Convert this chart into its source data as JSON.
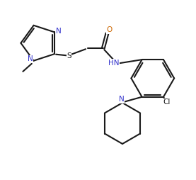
{
  "bg_color": "#ffffff",
  "line_color": "#1a1a1a",
  "n_color": "#3333cc",
  "o_color": "#cc6600",
  "s_color": "#1a1a1a",
  "cl_color": "#1a1a1a",
  "line_width": 1.5,
  "figsize": [
    2.77,
    2.54
  ],
  "dpi": 100,
  "xlim": [
    0,
    10
  ],
  "ylim": [
    0,
    9.2
  ]
}
